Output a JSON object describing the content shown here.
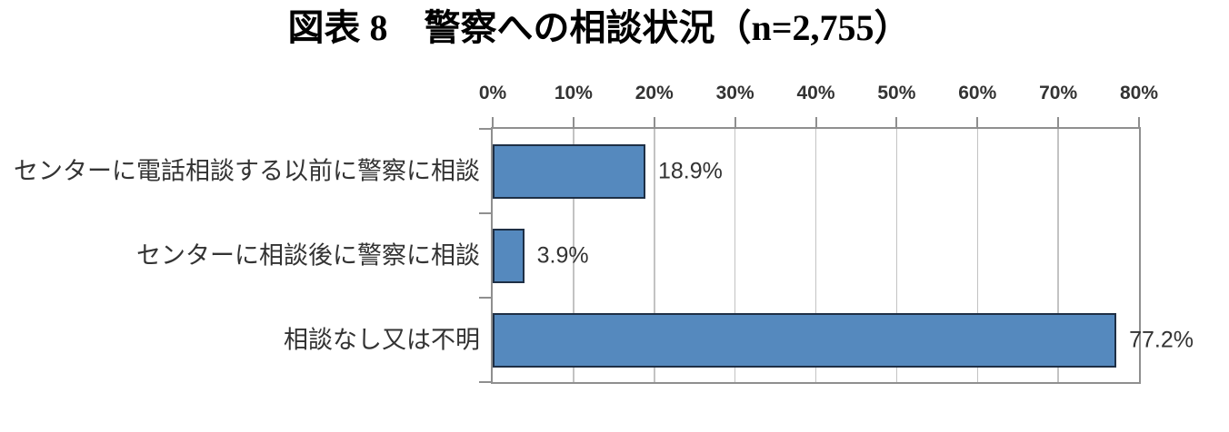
{
  "title": "図表 8　警察への相談状況（n=2,755）",
  "chart_data": {
    "type": "bar",
    "orientation": "horizontal",
    "title": "図表 8　警察への相談状況（n=2,755）",
    "sample_size_label": "n=2,755",
    "categories": [
      "センターに電話相談する以前に警察に相談",
      "センターに相談後に警察に相談",
      "相談なし又は不明"
    ],
    "values": [
      18.9,
      3.9,
      77.2
    ],
    "value_labels": [
      "18.9%",
      "3.9%",
      "77.2%"
    ],
    "xlim": [
      0,
      80
    ],
    "x_tick_labels": [
      "0%",
      "10%",
      "20%",
      "30%",
      "40%",
      "50%",
      "60%",
      "70%",
      "80%"
    ],
    "x_axis_position": "top",
    "grid": true,
    "legend": false,
    "colors": {
      "bar_fill": "#5589BE",
      "bar_border": "#1E2F45",
      "gridline": "#C3C3C3",
      "axis": "#8F8F8F",
      "text": "#333333",
      "title": "#000000"
    }
  }
}
